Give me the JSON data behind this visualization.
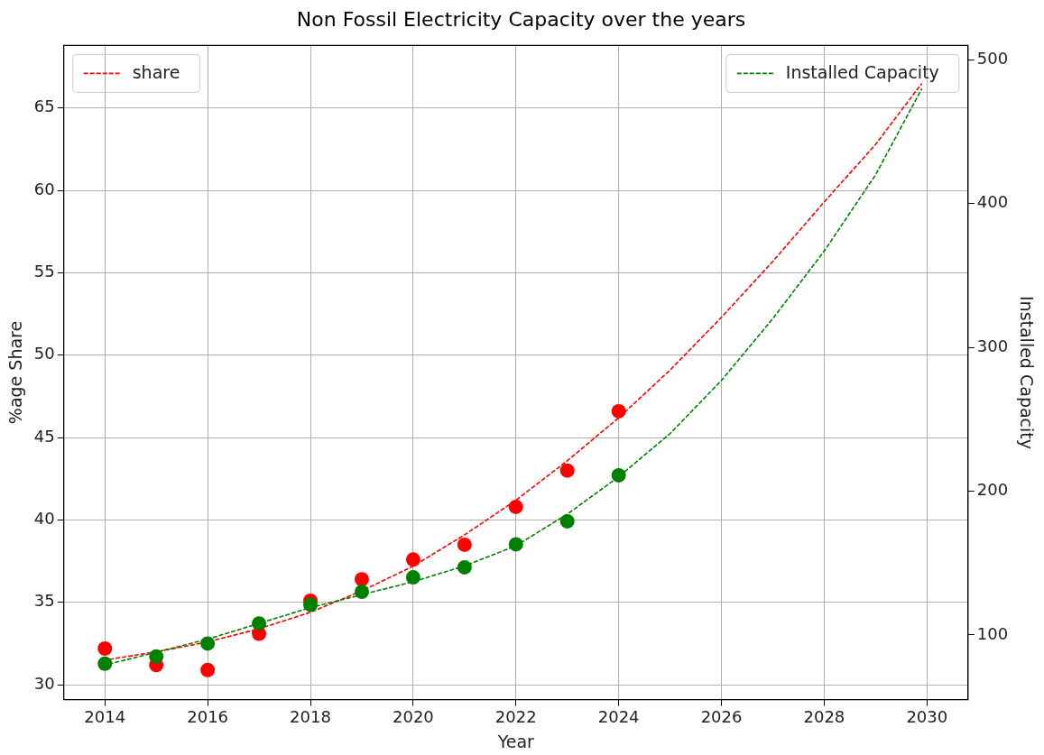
{
  "chart_data": {
    "type": "line",
    "title": "Non Fossil Electricity Capacity over the years",
    "xlabel": "Year",
    "ylabel": "%age Share",
    "y2label": "Installed Capacity",
    "xlim": [
      2013.2,
      2030.8
    ],
    "xticks": [
      2014,
      2016,
      2018,
      2020,
      2022,
      2024,
      2026,
      2028,
      2030
    ],
    "ylim": [
      29.1,
      68.8
    ],
    "yticks": [
      30,
      35,
      40,
      45,
      50,
      55,
      60,
      65
    ],
    "y2lim": [
      55,
      510
    ],
    "y2ticks": [
      100,
      200,
      300,
      400,
      500
    ],
    "grid": true,
    "legend": "top left",
    "series": [
      {
        "name": "share",
        "line_style": "dashed",
        "color": "#ff0000",
        "x": [
          2014,
          2015,
          2016,
          2017,
          2018,
          2019,
          2020,
          2021,
          2022,
          2023,
          2024,
          2025,
          2026,
          2027,
          2028,
          2029,
          2029.9
        ],
        "values": [
          31.5,
          32.0,
          32.6,
          33.4,
          34.4,
          35.7,
          37.2,
          39.1,
          41.2,
          43.6,
          46.2,
          49.1,
          52.3,
          55.7,
          59.3,
          62.8,
          66.5
        ]
      },
      {
        "name": "Installed Capacity",
        "axis": "y2",
        "line_style": "dashed",
        "color": "#008000",
        "x": [
          2014,
          2015,
          2016,
          2017,
          2018,
          2019,
          2020,
          2021,
          2022,
          2023,
          2024,
          2025,
          2026,
          2027,
          2028,
          2029,
          2029.9
        ],
        "values": [
          79,
          88,
          97,
          108,
          119,
          128,
          137,
          148,
          162,
          184,
          210,
          240,
          277,
          320,
          367,
          420,
          480
        ]
      },
      {
        "type": "scatter",
        "marker": "circle",
        "color": "#ff0000",
        "x": [
          2014,
          2015,
          2016,
          2017,
          2018,
          2019,
          2020,
          2021,
          2022,
          2023,
          2024
        ],
        "values": [
          32.2,
          31.2,
          30.9,
          33.1,
          35.1,
          36.4,
          37.6,
          38.5,
          40.8,
          43.0,
          46.6
        ]
      },
      {
        "type": "scatter",
        "marker": "circle",
        "axis": "y2",
        "color": "#008000",
        "x": [
          2014,
          2015,
          2016,
          2017,
          2018,
          2019,
          2020,
          2021,
          2022,
          2023,
          2024
        ],
        "values": [
          80,
          85,
          94,
          108,
          121,
          130,
          140,
          147,
          163,
          179,
          211
        ]
      }
    ]
  }
}
